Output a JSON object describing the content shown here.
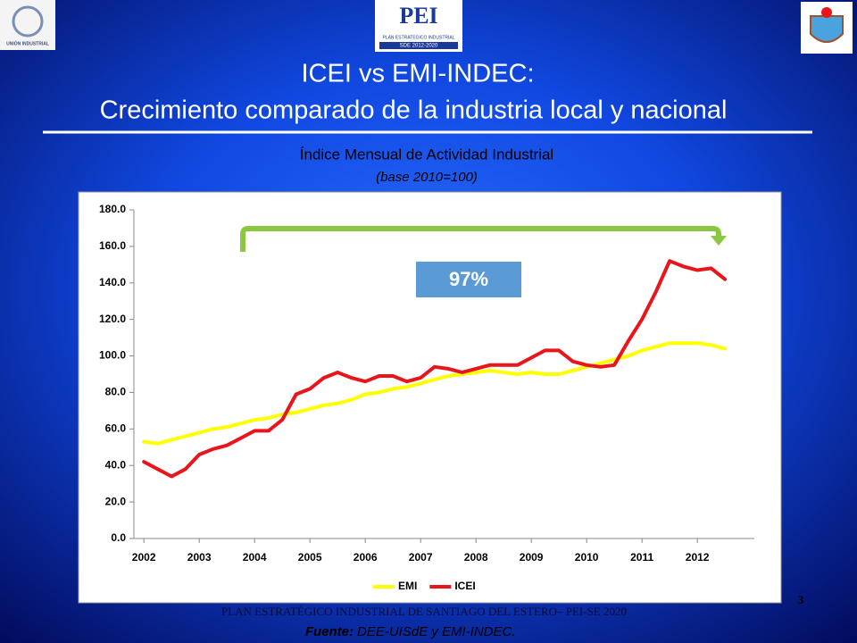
{
  "header": {
    "logo_left": "UNIÓN INDUSTRIAL",
    "logo_center": "PEI",
    "logo_center_sub": "PLAN ESTRATEGICO INDUSTRIAL",
    "logo_center_years": "SDE 2012-2020",
    "title_line1": "ICEI vs EMI-INDEC:",
    "title_line2": "Crecimiento comparado de la industria local y nacional"
  },
  "chart_data": {
    "type": "line",
    "title": "Índice Mensual de Actividad Industrial",
    "subtitle": "(base 2010=100)",
    "annotation": "97%",
    "x": [
      2002,
      2002.25,
      2002.5,
      2002.75,
      2003,
      2003.25,
      2003.5,
      2003.75,
      2004,
      2004.25,
      2004.5,
      2004.75,
      2005,
      2005.25,
      2005.5,
      2005.75,
      2006,
      2006.25,
      2006.5,
      2006.75,
      2007,
      2007.25,
      2007.5,
      2007.75,
      2008,
      2008.25,
      2008.5,
      2008.75,
      2009,
      2009.25,
      2009.5,
      2009.75,
      2010,
      2010.25,
      2010.5,
      2010.75,
      2011,
      2011.25,
      2011.5,
      2011.75,
      2012,
      2012.25,
      2012.5
    ],
    "series": [
      {
        "name": "EMI",
        "color": "#ffff00",
        "values": [
          53,
          52,
          54,
          56,
          58,
          60,
          61,
          63,
          65,
          66,
          68,
          69,
          71,
          73,
          74,
          76,
          79,
          80,
          82,
          83,
          85,
          87,
          89,
          90,
          91,
          92,
          91,
          90,
          91,
          90,
          90,
          92,
          94,
          96,
          98,
          100,
          103,
          105,
          107,
          107,
          107,
          106,
          104
        ]
      },
      {
        "name": "ICEI",
        "color": "#e8151b",
        "values": [
          42,
          38,
          34,
          38,
          46,
          49,
          51,
          55,
          59,
          59,
          65,
          79,
          82,
          88,
          91,
          88,
          86,
          89,
          89,
          86,
          88,
          94,
          93,
          91,
          93,
          95,
          95,
          95,
          99,
          103,
          103,
          97,
          95,
          94,
          95,
          108,
          120,
          135,
          152,
          149,
          147,
          148,
          142
        ]
      }
    ],
    "xlim": [
      2001.82,
      2013.03
    ],
    "xticks": [
      2002,
      2003,
      2004,
      2005,
      2006,
      2007,
      2008,
      2009,
      2010,
      2011,
      2012
    ],
    "ylim": [
      0,
      180
    ],
    "yticks": [
      {
        "value": 0,
        "label": "0.0"
      },
      {
        "value": 20,
        "label": "20.0"
      },
      {
        "value": 40,
        "label": "40.0"
      },
      {
        "value": 60,
        "label": "60.0"
      },
      {
        "value": 80,
        "label": "80.0"
      },
      {
        "value": 100,
        "label": "100.0"
      },
      {
        "value": 120,
        "label": "120.0"
      },
      {
        "value": 140,
        "label": "140.0"
      },
      {
        "value": 160,
        "label": "160.0"
      },
      {
        "value": 180,
        "label": "180.0"
      }
    ],
    "grid": false,
    "legend": "bottom"
  },
  "footer": {
    "plan": "PLAN ESTRATÉGICO INDUSTRIAL  DE SANTIAGO DEL ESTERO– PEI-SE 2020",
    "source_label": "Fuente:",
    "source": "DEE-UISdE  y EMI-INDEC.",
    "page_number": "3"
  }
}
